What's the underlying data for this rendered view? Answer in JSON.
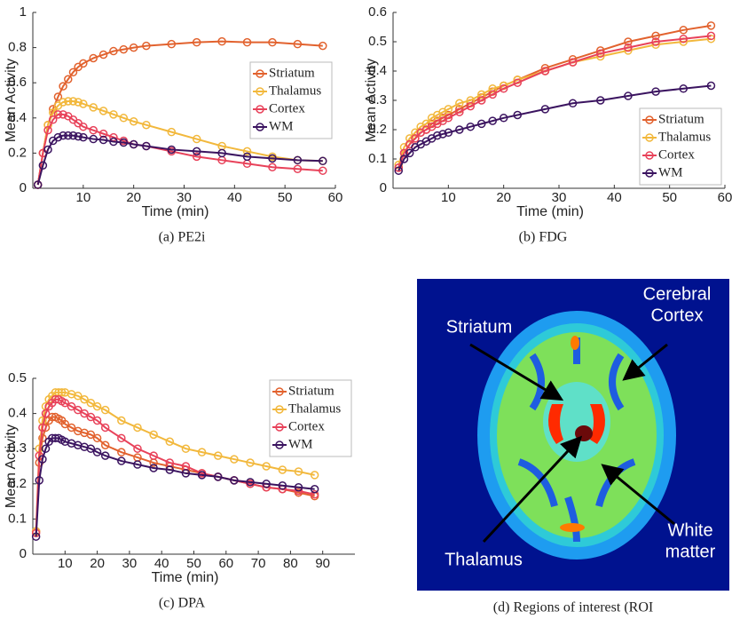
{
  "chart_data": [
    {
      "type": "line",
      "caption": "(a) PE2i",
      "xlabel": "Time (min)",
      "ylabel": "Mean Activity",
      "x": [
        1,
        2,
        3,
        4,
        5,
        6,
        7,
        8,
        9,
        10,
        12,
        14,
        16,
        18,
        20,
        22.5,
        27.5,
        32.5,
        37.5,
        42.5,
        47.5,
        52.5,
        57.5
      ],
      "xlim": [
        0,
        60
      ],
      "xticks": [
        10,
        20,
        30,
        40,
        50,
        60
      ],
      "ylim": [
        0,
        1
      ],
      "yticks": [
        0,
        0.2,
        0.4,
        0.6,
        0.8,
        1
      ],
      "legend": "right",
      "series": [
        {
          "name": "Striatum",
          "color": "#e2622e",
          "values": [
            0.02,
            0.2,
            0.36,
            0.45,
            0.52,
            0.58,
            0.62,
            0.66,
            0.69,
            0.71,
            0.74,
            0.76,
            0.78,
            0.79,
            0.8,
            0.81,
            0.82,
            0.83,
            0.835,
            0.83,
            0.83,
            0.82,
            0.81
          ]
        },
        {
          "name": "Thalamus",
          "color": "#f2b83c",
          "values": [
            0.02,
            0.2,
            0.36,
            0.43,
            0.47,
            0.49,
            0.495,
            0.495,
            0.49,
            0.48,
            0.46,
            0.44,
            0.42,
            0.4,
            0.38,
            0.36,
            0.32,
            0.28,
            0.24,
            0.21,
            0.18,
            0.16,
            0.155
          ]
        },
        {
          "name": "Cortex",
          "color": "#e8425a",
          "values": [
            0.02,
            0.2,
            0.33,
            0.39,
            0.42,
            0.42,
            0.41,
            0.39,
            0.37,
            0.35,
            0.33,
            0.31,
            0.29,
            0.27,
            0.25,
            0.24,
            0.21,
            0.18,
            0.16,
            0.14,
            0.12,
            0.11,
            0.1
          ]
        },
        {
          "name": "WM",
          "color": "#3b1460",
          "values": [
            0.02,
            0.13,
            0.22,
            0.27,
            0.29,
            0.3,
            0.3,
            0.3,
            0.295,
            0.29,
            0.28,
            0.275,
            0.265,
            0.26,
            0.25,
            0.24,
            0.22,
            0.21,
            0.2,
            0.18,
            0.17,
            0.16,
            0.155
          ]
        }
      ]
    },
    {
      "type": "line",
      "caption": "(b) FDG",
      "xlabel": "Time (min)",
      "ylabel": "Mean Activity",
      "x": [
        1,
        2,
        3,
        4,
        5,
        6,
        7,
        8,
        9,
        10,
        12,
        14,
        16,
        18,
        20,
        22.5,
        27.5,
        32.5,
        37.5,
        42.5,
        47.5,
        52.5,
        57.5
      ],
      "xlim": [
        0,
        60
      ],
      "xticks": [
        10,
        20,
        30,
        40,
        50,
        60
      ],
      "ylim": [
        0,
        0.6
      ],
      "yticks": [
        0,
        0.1,
        0.2,
        0.3,
        0.4,
        0.5,
        0.6
      ],
      "legend": "lower right",
      "series": [
        {
          "name": "Striatum",
          "color": "#e2622e",
          "values": [
            0.07,
            0.12,
            0.15,
            0.17,
            0.19,
            0.2,
            0.22,
            0.23,
            0.24,
            0.25,
            0.27,
            0.29,
            0.31,
            0.33,
            0.35,
            0.37,
            0.41,
            0.44,
            0.47,
            0.5,
            0.52,
            0.54,
            0.555
          ]
        },
        {
          "name": "Thalamus",
          "color": "#f2b83c",
          "values": [
            0.08,
            0.14,
            0.17,
            0.19,
            0.21,
            0.22,
            0.24,
            0.25,
            0.26,
            0.27,
            0.29,
            0.3,
            0.32,
            0.34,
            0.35,
            0.37,
            0.4,
            0.43,
            0.45,
            0.47,
            0.49,
            0.5,
            0.51
          ]
        },
        {
          "name": "Cortex",
          "color": "#e8425a",
          "values": [
            0.07,
            0.12,
            0.15,
            0.17,
            0.19,
            0.2,
            0.21,
            0.22,
            0.23,
            0.24,
            0.26,
            0.28,
            0.3,
            0.32,
            0.34,
            0.36,
            0.4,
            0.43,
            0.46,
            0.48,
            0.5,
            0.51,
            0.52
          ]
        },
        {
          "name": "WM",
          "color": "#3b1460",
          "values": [
            0.06,
            0.1,
            0.12,
            0.14,
            0.15,
            0.16,
            0.17,
            0.18,
            0.185,
            0.19,
            0.2,
            0.21,
            0.22,
            0.23,
            0.24,
            0.25,
            0.27,
            0.29,
            0.3,
            0.315,
            0.33,
            0.34,
            0.35
          ]
        }
      ]
    },
    {
      "type": "line",
      "caption": "(c) DPA",
      "xlabel": "Time (min)",
      "ylabel": "Mean Activity",
      "x": [
        1,
        2,
        3,
        4,
        5,
        6,
        7,
        8,
        9,
        10,
        12,
        14,
        16,
        18,
        20,
        22.5,
        27.5,
        32.5,
        37.5,
        42.5,
        47.5,
        52.5,
        57.5,
        62.5,
        67.5,
        72.5,
        77.5,
        82.5,
        87.5
      ],
      "xlim": [
        0,
        100
      ],
      "xticks": [
        10,
        20,
        30,
        40,
        50,
        60,
        70,
        80,
        90
      ],
      "ylim": [
        0,
        0.5
      ],
      "yticks": [
        0,
        0.1,
        0.2,
        0.3,
        0.4,
        0.5
      ],
      "legend": "upper right",
      "series": [
        {
          "name": "Striatum",
          "color": "#e2622e",
          "values": [
            0.065,
            0.26,
            0.33,
            0.36,
            0.38,
            0.39,
            0.39,
            0.385,
            0.38,
            0.37,
            0.36,
            0.35,
            0.345,
            0.34,
            0.33,
            0.31,
            0.29,
            0.275,
            0.26,
            0.25,
            0.24,
            0.23,
            0.22,
            0.21,
            0.2,
            0.19,
            0.185,
            0.175,
            0.165
          ]
        },
        {
          "name": "Thalamus",
          "color": "#f2b83c",
          "values": [
            0.065,
            0.3,
            0.38,
            0.42,
            0.44,
            0.45,
            0.46,
            0.46,
            0.46,
            0.46,
            0.455,
            0.45,
            0.44,
            0.43,
            0.42,
            0.41,
            0.38,
            0.36,
            0.34,
            0.32,
            0.3,
            0.29,
            0.28,
            0.27,
            0.26,
            0.25,
            0.24,
            0.235,
            0.225
          ]
        },
        {
          "name": "Cortex",
          "color": "#e8425a",
          "values": [
            0.06,
            0.28,
            0.36,
            0.4,
            0.42,
            0.43,
            0.44,
            0.44,
            0.435,
            0.43,
            0.42,
            0.41,
            0.4,
            0.39,
            0.38,
            0.36,
            0.33,
            0.3,
            0.28,
            0.26,
            0.25,
            0.23,
            0.22,
            0.21,
            0.2,
            0.19,
            0.185,
            0.18,
            0.17
          ]
        },
        {
          "name": "WM",
          "color": "#3b1460",
          "values": [
            0.05,
            0.21,
            0.27,
            0.3,
            0.32,
            0.33,
            0.33,
            0.33,
            0.325,
            0.32,
            0.315,
            0.31,
            0.305,
            0.3,
            0.29,
            0.28,
            0.265,
            0.255,
            0.245,
            0.24,
            0.23,
            0.225,
            0.22,
            0.21,
            0.205,
            0.2,
            0.195,
            0.19,
            0.185
          ]
        }
      ]
    }
  ],
  "roi_panel": {
    "caption": "(d) Regions of interest (ROI",
    "labels": [
      [
        "Striatum"
      ],
      [
        "Cerebral",
        "Cortex"
      ],
      [
        "Thalamus"
      ],
      [
        "White",
        "matter"
      ]
    ]
  }
}
